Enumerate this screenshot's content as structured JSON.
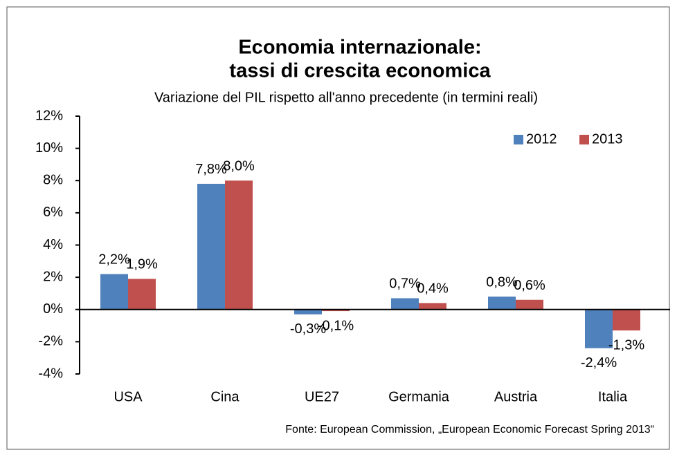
{
  "chart_data": {
    "type": "bar",
    "title": "Economia internazionale:",
    "title_line2": "tassi di crescita economica",
    "subtitle": "Variazione del PIL rispetto all'anno precedente (in termini reali)",
    "source": "Fonte: European Commission, „European Economic Forecast Spring 2013“",
    "categories": [
      "USA",
      "Cina",
      "UE27",
      "Germania",
      "Austria",
      "Italia"
    ],
    "series": [
      {
        "name": "2012",
        "color": "#4f81bd",
        "values": [
          2.2,
          7.8,
          -0.3,
          0.7,
          0.8,
          -2.4
        ],
        "value_labels": [
          "2,2%",
          "7,8%",
          "-0,3%",
          "0,7%",
          "0,8%",
          "-2,4%"
        ]
      },
      {
        "name": "2013",
        "color": "#c0504d",
        "values": [
          1.9,
          8.0,
          -0.1,
          0.4,
          0.6,
          -1.3
        ],
        "value_labels": [
          "1,9%",
          "8,0%",
          "-0,1%",
          "0,4%",
          "0,6%",
          "-1,3%"
        ]
      }
    ],
    "ylim": [
      -4,
      12
    ],
    "yticks": [
      {
        "value": -4,
        "label": "-4%"
      },
      {
        "value": -2,
        "label": "-2%"
      },
      {
        "value": 0,
        "label": "0%"
      },
      {
        "value": 2,
        "label": "2%"
      },
      {
        "value": 4,
        "label": "4%"
      },
      {
        "value": 6,
        "label": "6%"
      },
      {
        "value": 8,
        "label": "8%"
      },
      {
        "value": 10,
        "label": "10%"
      },
      {
        "value": 12,
        "label": "12%"
      }
    ],
    "grid": false,
    "legend": "top-right"
  }
}
